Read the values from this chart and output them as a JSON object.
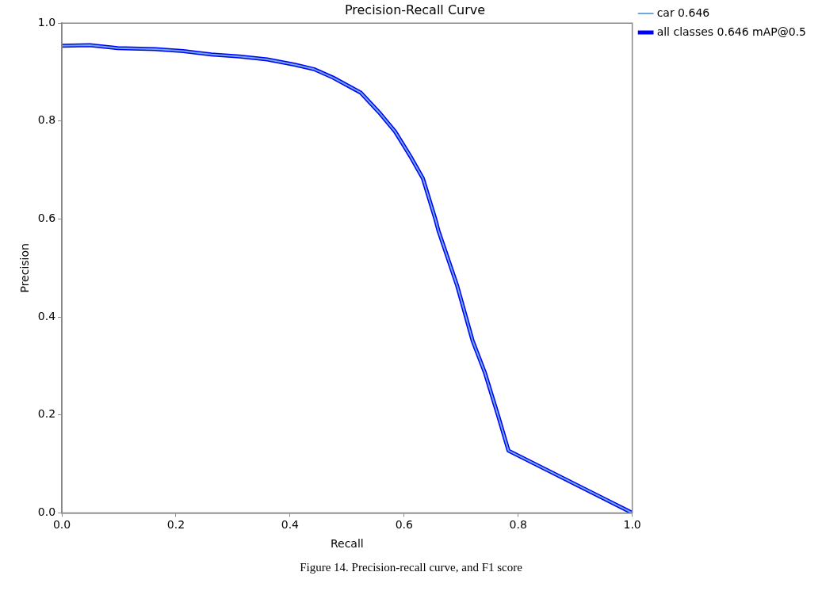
{
  "chart_data": {
    "type": "line",
    "title": "Precision-Recall Curve",
    "xlabel": "Recall",
    "ylabel": "Precision",
    "annotations": [
      "Figure 14. Precision-recall curve, and F1 score"
    ],
    "xlim": [
      0,
      1
    ],
    "ylim": [
      0,
      1
    ],
    "xticks": [
      {
        "value": 0,
        "label": "0.0"
      },
      {
        "value": 0.2,
        "label": "0.2"
      },
      {
        "value": 0.4,
        "label": "0.4"
      },
      {
        "value": 0.6,
        "label": "0.6"
      },
      {
        "value": 0.8,
        "label": "0.8"
      },
      {
        "value": 1,
        "label": "1.0"
      }
    ],
    "yticks": [
      {
        "value": 0,
        "label": "0.0"
      },
      {
        "value": 0.2,
        "label": "0.2"
      },
      {
        "value": 0.4,
        "label": "0.4"
      },
      {
        "value": 0.6,
        "label": "0.6"
      },
      {
        "value": 0.8,
        "label": "0.8"
      },
      {
        "value": 1,
        "label": "1.0"
      }
    ],
    "grid": false,
    "legend": "top right",
    "marker": "none",
    "line_style": "solid",
    "series": [
      {
        "name": "car 0.646",
        "color": "#6fa8dc",
        "x": [
          0,
          0.049,
          0.098,
          0.164,
          0.213,
          0.262,
          0.311,
          0.36,
          0.409,
          0.442,
          0.475,
          0.524,
          0.556,
          0.584,
          0.611,
          0.633,
          0.655,
          0.66,
          0.693,
          0.72,
          0.742,
          0.766,
          0.783,
          1.0
        ],
        "values": [
          0.954,
          0.955,
          0.949,
          0.947,
          0.943,
          0.936,
          0.932,
          0.926,
          0.915,
          0.906,
          0.889,
          0.858,
          0.818,
          0.779,
          0.728,
          0.683,
          0.599,
          0.577,
          0.464,
          0.352,
          0.285,
          0.194,
          0.127,
          0.0
        ]
      },
      {
        "name": "all classes 0.646 mAP@0.5",
        "color": "#0000ff",
        "x": [
          0,
          0.049,
          0.098,
          0.164,
          0.213,
          0.262,
          0.311,
          0.36,
          0.409,
          0.442,
          0.475,
          0.524,
          0.556,
          0.584,
          0.611,
          0.633,
          0.655,
          0.66,
          0.693,
          0.72,
          0.742,
          0.766,
          0.783,
          1.0
        ],
        "values": [
          0.954,
          0.955,
          0.949,
          0.947,
          0.943,
          0.936,
          0.932,
          0.926,
          0.915,
          0.906,
          0.889,
          0.858,
          0.818,
          0.779,
          0.728,
          0.683,
          0.599,
          0.577,
          0.464,
          0.352,
          0.285,
          0.194,
          0.127,
          0.0
        ]
      }
    ]
  }
}
